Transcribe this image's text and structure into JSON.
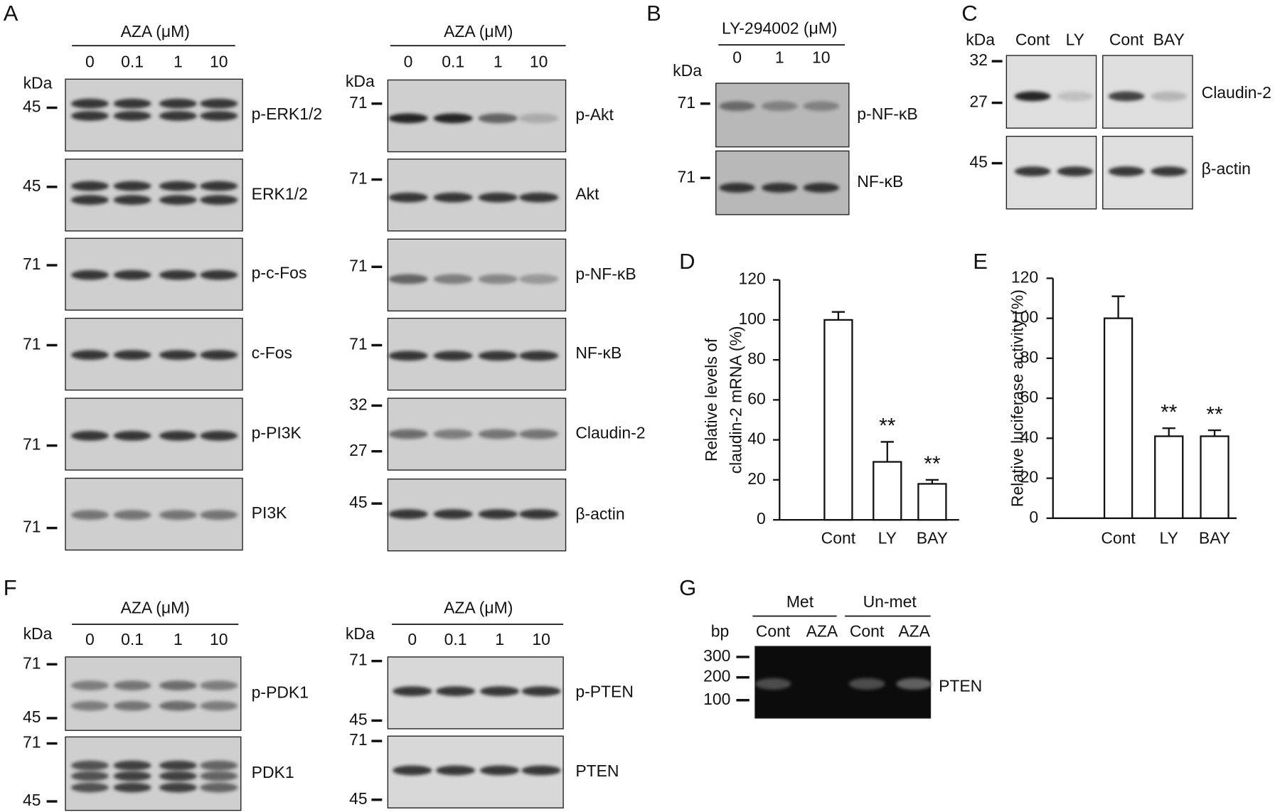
{
  "panel_labels": [
    "A",
    "B",
    "C",
    "D",
    "E",
    "F",
    "G"
  ],
  "A": {
    "left": {
      "header": "AZA  (μM)",
      "lanes": [
        "0",
        "0.1",
        "1",
        "10"
      ],
      "kda": "kDa",
      "blots": [
        {
          "label": "p-ERK1/2",
          "markers": [
            45
          ]
        },
        {
          "label": "ERK1/2",
          "markers": [
            45
          ]
        },
        {
          "label": "p-c-Fos",
          "markers": [
            71
          ]
        },
        {
          "label": "c-Fos",
          "markers": [
            71
          ]
        },
        {
          "label": "p-PI3K",
          "markers": [
            71
          ]
        },
        {
          "label": "PI3K",
          "markers": [
            71
          ]
        }
      ]
    },
    "right": {
      "header": "AZA  (μM)",
      "lanes": [
        "0",
        "0.1",
        "1",
        "10"
      ],
      "kda": "kDa",
      "blots": [
        {
          "label": "p-Akt",
          "markers": [
            71
          ]
        },
        {
          "label": "Akt",
          "markers": [
            71
          ]
        },
        {
          "label": "p-NF-κB",
          "markers": [
            71
          ]
        },
        {
          "label": "NF-κB",
          "markers": [
            71
          ]
        },
        {
          "label": "Claudin-2",
          "markers": [
            32,
            27
          ]
        },
        {
          "label": "β-actin",
          "markers": [
            45
          ]
        }
      ]
    }
  },
  "B": {
    "header": "LY-294002  (μM)",
    "lanes": [
      "0",
      "1",
      "10"
    ],
    "kda": "kDa",
    "blots": [
      {
        "label": "p-NF-κB",
        "markers": [
          71
        ]
      },
      {
        "label": "NF-κB",
        "markers": [
          71
        ]
      }
    ]
  },
  "C": {
    "lanes": [
      "Cont",
      "LY",
      "Cont",
      "BAY"
    ],
    "kda": "kDa",
    "blots": [
      {
        "label": "Claudin-2",
        "markers": [
          32,
          27
        ]
      },
      {
        "label": "β-actin",
        "markers": [
          45
        ]
      }
    ]
  },
  "chart_data": [
    {
      "type": "bar",
      "ylabel": [
        "Relative levels of",
        "claudin-2 mRNA  (%)"
      ],
      "categories": [
        "Cont",
        "LY",
        "BAY"
      ],
      "values": [
        100,
        29,
        18
      ],
      "errors": [
        4,
        10,
        2
      ],
      "annotations": [
        null,
        "**",
        "**"
      ],
      "color": "#ffffff",
      "ylim": [
        0,
        120
      ],
      "yticks": [
        0,
        20,
        40,
        60,
        80,
        100,
        120
      ]
    },
    {
      "type": "bar",
      "ylabel": "Relative luciferase activity  (%)",
      "categories": [
        "Cont",
        "LY",
        "BAY"
      ],
      "values": [
        100,
        41,
        41
      ],
      "errors": [
        11,
        4,
        3
      ],
      "annotations": [
        null,
        "**",
        "**"
      ],
      "color": "#ffffff",
      "ylim": [
        0,
        120
      ],
      "yticks": [
        0,
        20,
        40,
        60,
        80,
        100,
        120
      ]
    }
  ],
  "F": {
    "left": {
      "header": "AZA  (μM)",
      "lanes": [
        "0",
        "0.1",
        "1",
        "10"
      ],
      "kda": "kDa",
      "blots": [
        {
          "label": "p-PDK1",
          "markers": [
            71,
            45
          ]
        },
        {
          "label": "PDK1",
          "markers": [
            71,
            45
          ]
        }
      ]
    },
    "right": {
      "header": "AZA  (μM)",
      "lanes": [
        "0",
        "0.1",
        "1",
        "10"
      ],
      "kda": "kDa",
      "blots": [
        {
          "label": "p-PTEN",
          "markers": [
            71,
            45
          ]
        },
        {
          "label": "PTEN",
          "markers": [
            71,
            45
          ]
        }
      ]
    }
  },
  "G": {
    "groups": [
      "Met",
      "Un-met"
    ],
    "unit": "bp",
    "lanes": [
      "Cont",
      "AZA",
      "Cont",
      "AZA"
    ],
    "markers": [
      300,
      200,
      100
    ],
    "label": "PTEN"
  }
}
